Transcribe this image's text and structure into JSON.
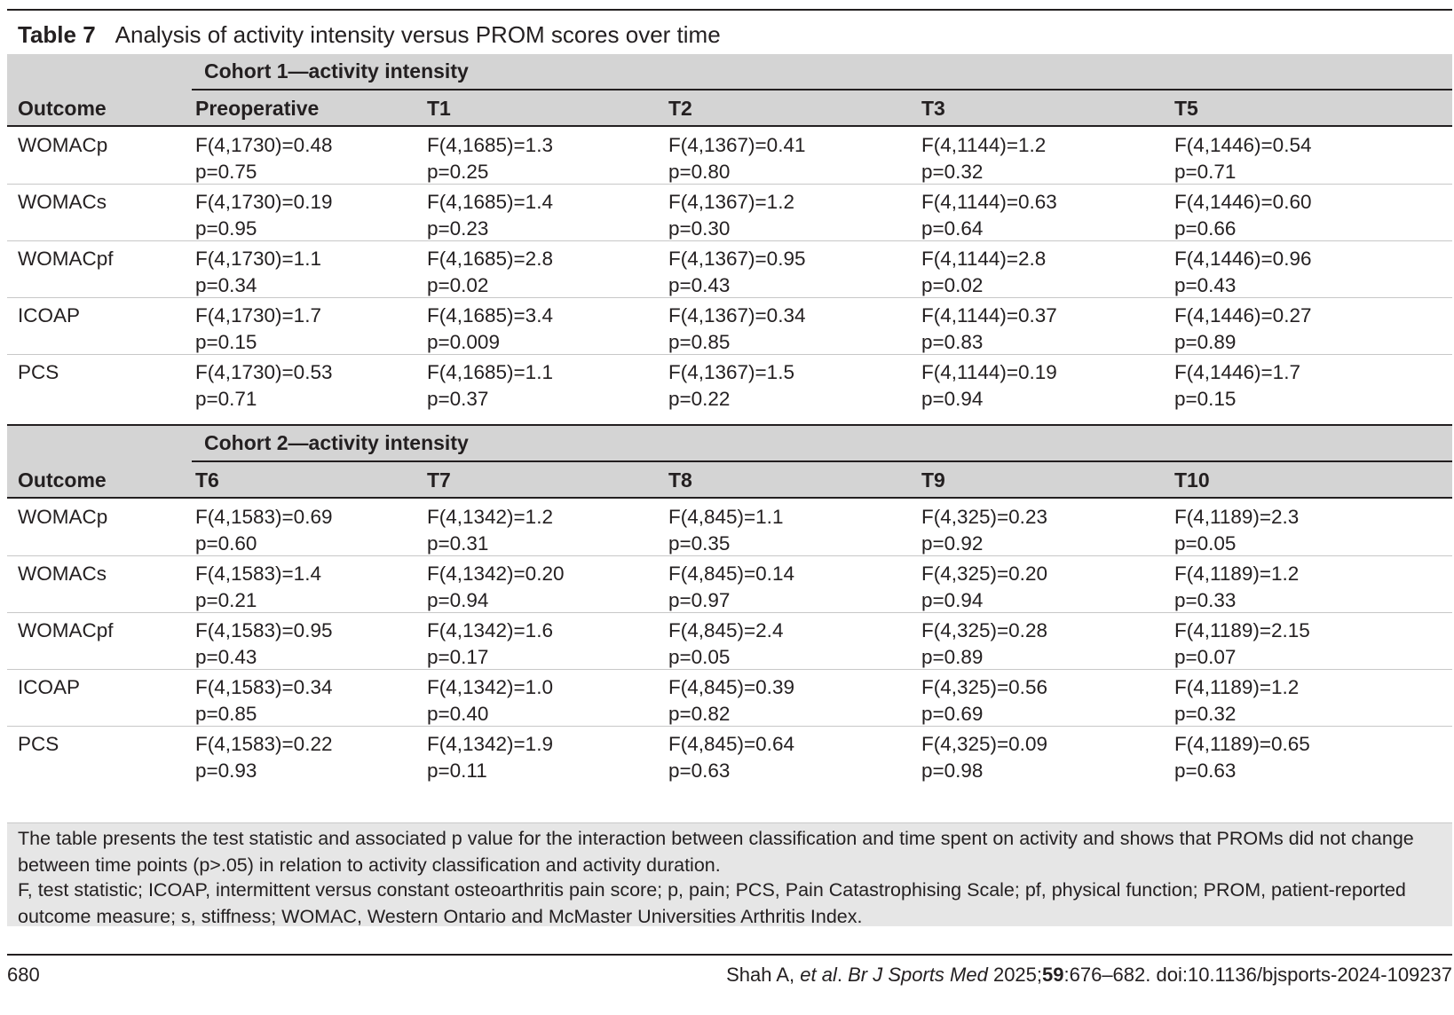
{
  "title": {
    "label": "Table 7",
    "text": "Analysis of activity intensity versus PROM scores over time"
  },
  "outcome_header": "Outcome",
  "cohorts": [
    {
      "name": "Cohort 1—activity intensity",
      "columns": [
        "Preoperative",
        "T1",
        "T2",
        "T3",
        "T5"
      ],
      "rows": [
        {
          "outcome": "WOMACp",
          "cells": [
            [
              "F(4,1730)=0.48",
              "p=0.75"
            ],
            [
              "F(4,1685)=1.3",
              "p=0.25"
            ],
            [
              "F(4,1367)=0.41",
              "p=0.80"
            ],
            [
              "F(4,1144)=1.2",
              "p=0.32"
            ],
            [
              "F(4,1446)=0.54",
              "p=0.71"
            ]
          ]
        },
        {
          "outcome": "WOMACs",
          "cells": [
            [
              "F(4,1730)=0.19",
              "p=0.95"
            ],
            [
              "F(4,1685)=1.4",
              "p=0.23"
            ],
            [
              "F(4,1367)=1.2",
              "p=0.30"
            ],
            [
              "F(4,1144)=0.63",
              "p=0.64"
            ],
            [
              "F(4,1446)=0.60",
              "p=0.66"
            ]
          ]
        },
        {
          "outcome": "WOMACpf",
          "cells": [
            [
              "F(4,1730)=1.1",
              "p=0.34"
            ],
            [
              "F(4,1685)=2.8",
              "p=0.02"
            ],
            [
              "F(4,1367)=0.95",
              "p=0.43"
            ],
            [
              "F(4,1144)=2.8",
              "p=0.02"
            ],
            [
              "F(4,1446)=0.96",
              "p=0.43"
            ]
          ]
        },
        {
          "outcome": "ICOAP",
          "cells": [
            [
              "F(4,1730)=1.7",
              "p=0.15"
            ],
            [
              "F(4,1685)=3.4",
              "p=0.009"
            ],
            [
              "F(4,1367)=0.34",
              "p=0.85"
            ],
            [
              "F(4,1144)=0.37",
              "p=0.83"
            ],
            [
              "F(4,1446)=0.27",
              "p=0.89"
            ]
          ]
        },
        {
          "outcome": "PCS",
          "cells": [
            [
              "F(4,1730)=0.53",
              "p=0.71"
            ],
            [
              "F(4,1685)=1.1",
              "p=0.37"
            ],
            [
              "F(4,1367)=1.5",
              "p=0.22"
            ],
            [
              "F(4,1144)=0.19",
              "p=0.94"
            ],
            [
              "F(4,1446)=1.7",
              "p=0.15"
            ]
          ]
        }
      ]
    },
    {
      "name": "Cohort 2—activity intensity",
      "columns": [
        "T6",
        "T7",
        "T8",
        "T9",
        "T10"
      ],
      "rows": [
        {
          "outcome": "WOMACp",
          "cells": [
            [
              "F(4,1583)=0.69",
              "p=0.60"
            ],
            [
              "F(4,1342)=1.2",
              "p=0.31"
            ],
            [
              "F(4,845)=1.1",
              "p=0.35"
            ],
            [
              "F(4,325)=0.23",
              "p=0.92"
            ],
            [
              "F(4,1189)=2.3",
              "p=0.05"
            ]
          ]
        },
        {
          "outcome": "WOMACs",
          "cells": [
            [
              "F(4,1583)=1.4",
              "p=0.21"
            ],
            [
              "F(4,1342)=0.20",
              "p=0.94"
            ],
            [
              "F(4,845)=0.14",
              "p=0.97"
            ],
            [
              "F(4,325)=0.20",
              "p=0.94"
            ],
            [
              "F(4,1189)=1.2",
              "p=0.33"
            ]
          ]
        },
        {
          "outcome": "WOMACpf",
          "cells": [
            [
              "F(4,1583)=0.95",
              "p=0.43"
            ],
            [
              "F(4,1342)=1.6",
              "p=0.17"
            ],
            [
              "F(4,845)=2.4",
              "p=0.05"
            ],
            [
              "F(4,325)=0.28",
              "p=0.89"
            ],
            [
              "F(4,1189)=2.15",
              "p=0.07"
            ]
          ]
        },
        {
          "outcome": "ICOAP",
          "cells": [
            [
              "F(4,1583)=0.34",
              "p=0.85"
            ],
            [
              "F(4,1342)=1.0",
              "p=0.40"
            ],
            [
              "F(4,845)=0.39",
              "p=0.82"
            ],
            [
              "F(4,325)=0.56",
              "p=0.69"
            ],
            [
              "F(4,1189)=1.2",
              "p=0.32"
            ]
          ]
        },
        {
          "outcome": "PCS",
          "cells": [
            [
              "F(4,1583)=0.22",
              "p=0.93"
            ],
            [
              "F(4,1342)=1.9",
              "p=0.11"
            ],
            [
              "F(4,845)=0.64",
              "p=0.63"
            ],
            [
              "F(4,325)=0.09",
              "p=0.98"
            ],
            [
              "F(4,1189)=0.65",
              "p=0.63"
            ]
          ]
        }
      ]
    }
  ],
  "footnotes": [
    "The table presents the test statistic and associated p value for the interaction between classification and time spent on activity and shows that PROMs did not change between time points (p>.05) in relation to activity classification and activity duration.",
    "F, test statistic; ICOAP, intermittent versus constant osteoarthritis pain score; p, pain; PCS, Pain Catastrophising Scale; pf, physical function; PROM, patient-reported outcome measure; s, stiffness; WOMAC, Western Ontario and McMaster Universities Arthritis Index."
  ],
  "footer": {
    "page_number": "680",
    "authors": "Shah A, ",
    "etal": "et al",
    "journal": "Br J Sports Med",
    "year": " 2025;",
    "volume": "59",
    "pages_doi": ":676–682. doi:10.1136/bjsports-2024-109237"
  }
}
